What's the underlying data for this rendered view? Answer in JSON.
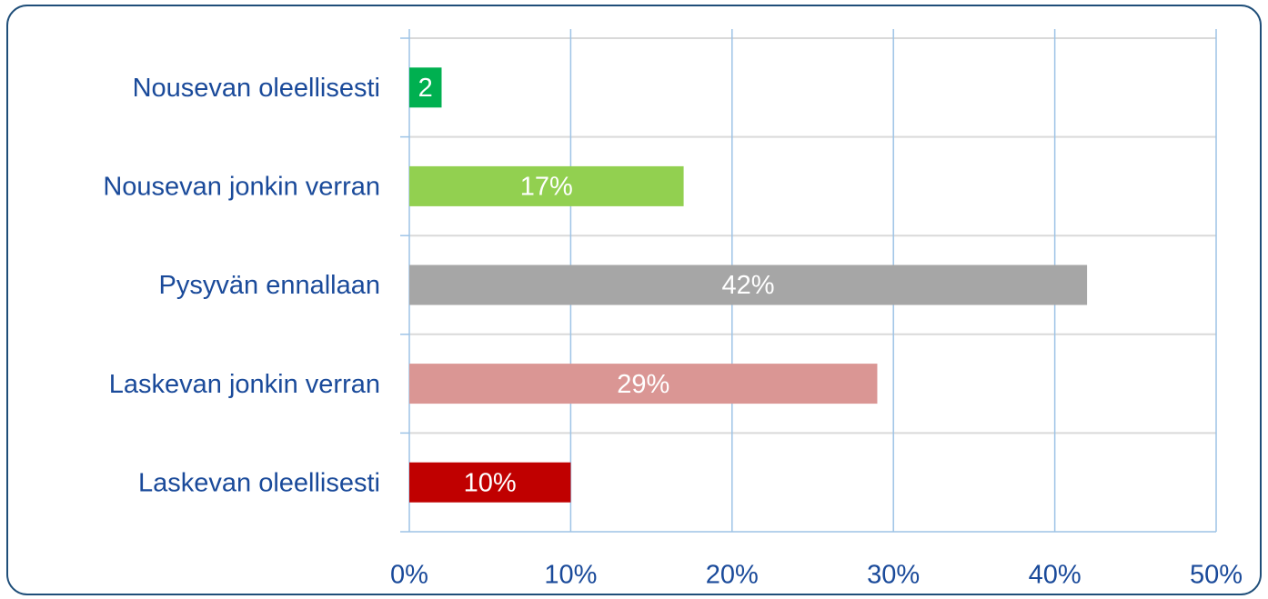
{
  "chart_data": {
    "type": "hbar",
    "categories": [
      "Nousevan oleellisesti",
      "Nousevan jonkin verran",
      "Pysyvän ennallaan",
      "Laskevan jonkin verran",
      "Laskevan oleellisesti"
    ],
    "values": [
      2,
      17,
      42,
      29,
      10
    ],
    "value_labels": [
      "2",
      "17%",
      "42%",
      "29%",
      "10%"
    ],
    "colors": [
      "#00b050",
      "#92d050",
      "#a6a6a6",
      "#da9694",
      "#c00000"
    ],
    "xlim": [
      0,
      50
    ],
    "xticks": [
      {
        "value": 0,
        "label": "0%"
      },
      {
        "value": 10,
        "label": "10%"
      },
      {
        "value": 20,
        "label": "20%"
      },
      {
        "value": 30,
        "label": "30%"
      },
      {
        "value": 40,
        "label": "40%"
      },
      {
        "value": 50,
        "label": "50%"
      }
    ],
    "grid": true
  }
}
